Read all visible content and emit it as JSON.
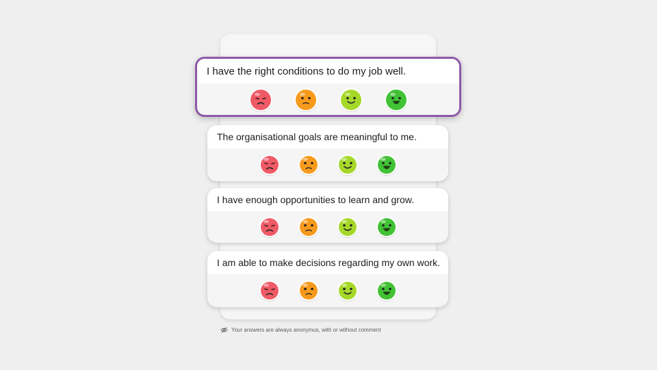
{
  "questions": [
    {
      "text": "I have the right conditions to do my job well.",
      "highlighted": true
    },
    {
      "text": "The organisational goals are meaningful to me.",
      "highlighted": false
    },
    {
      "text": "I have enough opportunities to learn and grow.",
      "highlighted": false
    },
    {
      "text": "I am able to make decisions regarding my own work.",
      "highlighted": false
    }
  ],
  "ratings": [
    {
      "icon": "very-unhappy-face-icon",
      "color": "#ef5a66",
      "mood": "very-unhappy"
    },
    {
      "icon": "unhappy-face-icon",
      "color": "#f79a1c",
      "mood": "unhappy"
    },
    {
      "icon": "happy-face-icon",
      "color": "#a6d82a",
      "mood": "happy"
    },
    {
      "icon": "very-happy-face-icon",
      "color": "#42c235",
      "mood": "very-happy"
    }
  ],
  "footer": {
    "icon": "eye-off-icon",
    "text": "Your answers are always anonymus, with or without comment"
  },
  "colors": {
    "highlight_border": "#8e58a8",
    "background": "#efefef"
  }
}
